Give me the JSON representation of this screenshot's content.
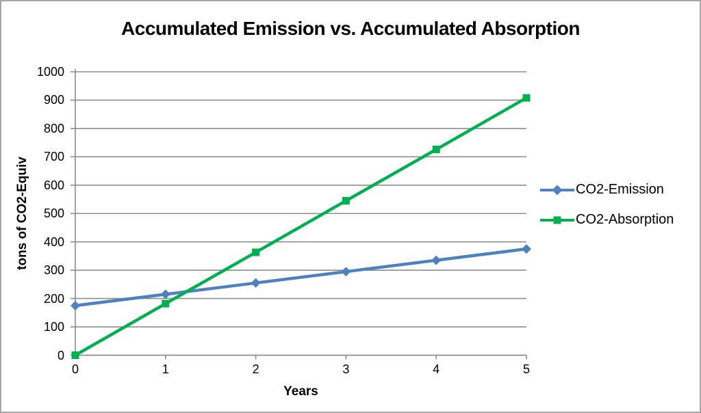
{
  "window": {
    "background_color": "#FFFFFF",
    "border_color": "#A6A6A6"
  },
  "chart_data": {
    "type": "line",
    "title": "Accumulated Emission vs. Accumulated Absorption",
    "xlabel": "Years",
    "ylabel": "tons of CO2-Equiv",
    "xlim": [
      0,
      5
    ],
    "ylim": [
      0,
      1000
    ],
    "xticks": [
      0,
      1,
      2,
      3,
      4,
      5
    ],
    "yticks": [
      0,
      100,
      200,
      300,
      400,
      500,
      600,
      700,
      800,
      900,
      1000
    ],
    "grid": "horizontal",
    "grid_color": "#8C8C8C",
    "axis_color": "#8C8C8C",
    "legend_position": "right",
    "x": [
      0,
      1,
      2,
      3,
      4,
      5
    ],
    "series": [
      {
        "name": "CO2-Emission",
        "color": "#4F81BD",
        "marker": "diamond",
        "values": [
          175,
          215,
          255,
          295,
          335,
          375
        ]
      },
      {
        "name": "CO2-Absorption",
        "color": "#00B050",
        "marker": "square",
        "values": [
          0,
          182,
          363,
          545,
          726,
          908
        ]
      }
    ]
  }
}
